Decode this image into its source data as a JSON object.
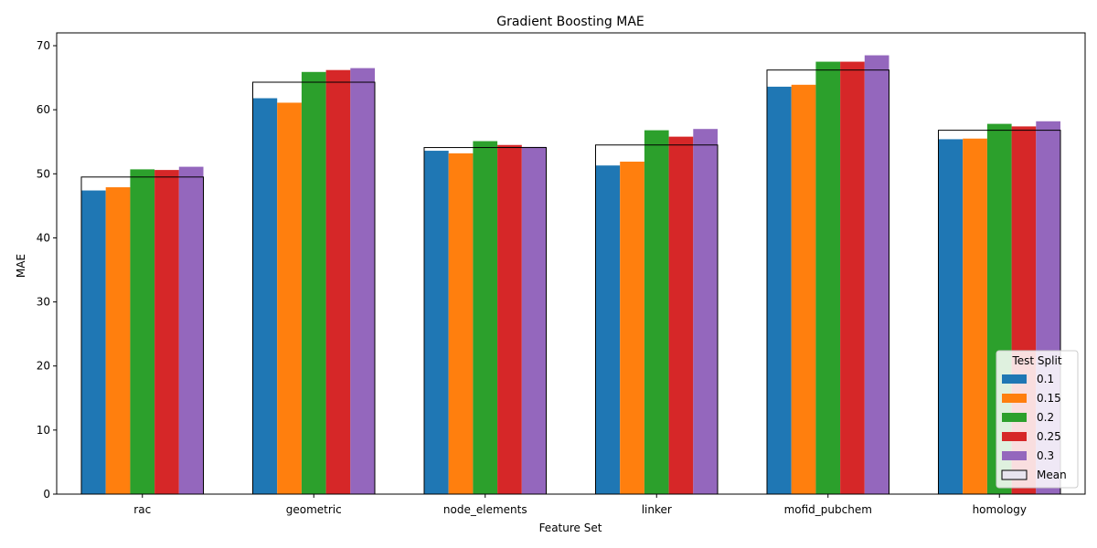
{
  "chart_data": {
    "type": "bar",
    "title": "Gradient Boosting MAE",
    "xlabel": "Feature Set",
    "ylabel": "MAE",
    "ylim": [
      0,
      72
    ],
    "yticks": [
      0,
      10,
      20,
      30,
      40,
      50,
      60,
      70
    ],
    "categories": [
      "rac",
      "geometric",
      "node_elements",
      "linker",
      "mofid_pubchem",
      "homology"
    ],
    "series": [
      {
        "name": "0.1",
        "color": "#1f77b4",
        "values": [
          47.4,
          61.8,
          53.6,
          51.3,
          63.6,
          55.4
        ]
      },
      {
        "name": "0.15",
        "color": "#ff7f0e",
        "values": [
          47.9,
          61.1,
          53.2,
          51.9,
          63.9,
          55.5
        ]
      },
      {
        "name": "0.2",
        "color": "#2ca02c",
        "values": [
          50.7,
          65.9,
          55.1,
          56.8,
          67.5,
          57.8
        ]
      },
      {
        "name": "0.25",
        "color": "#d62728",
        "values": [
          50.6,
          66.2,
          54.5,
          55.8,
          67.5,
          57.4
        ]
      },
      {
        "name": "0.3",
        "color": "#9467bd",
        "values": [
          51.1,
          66.5,
          54.2,
          57.0,
          68.5,
          58.2
        ]
      }
    ],
    "mean": {
      "name": "Mean",
      "values": [
        49.5,
        64.3,
        54.1,
        54.5,
        66.2,
        56.8
      ]
    },
    "legend": {
      "title": "Test Split",
      "placement": "lower-right"
    },
    "grid": false
  }
}
